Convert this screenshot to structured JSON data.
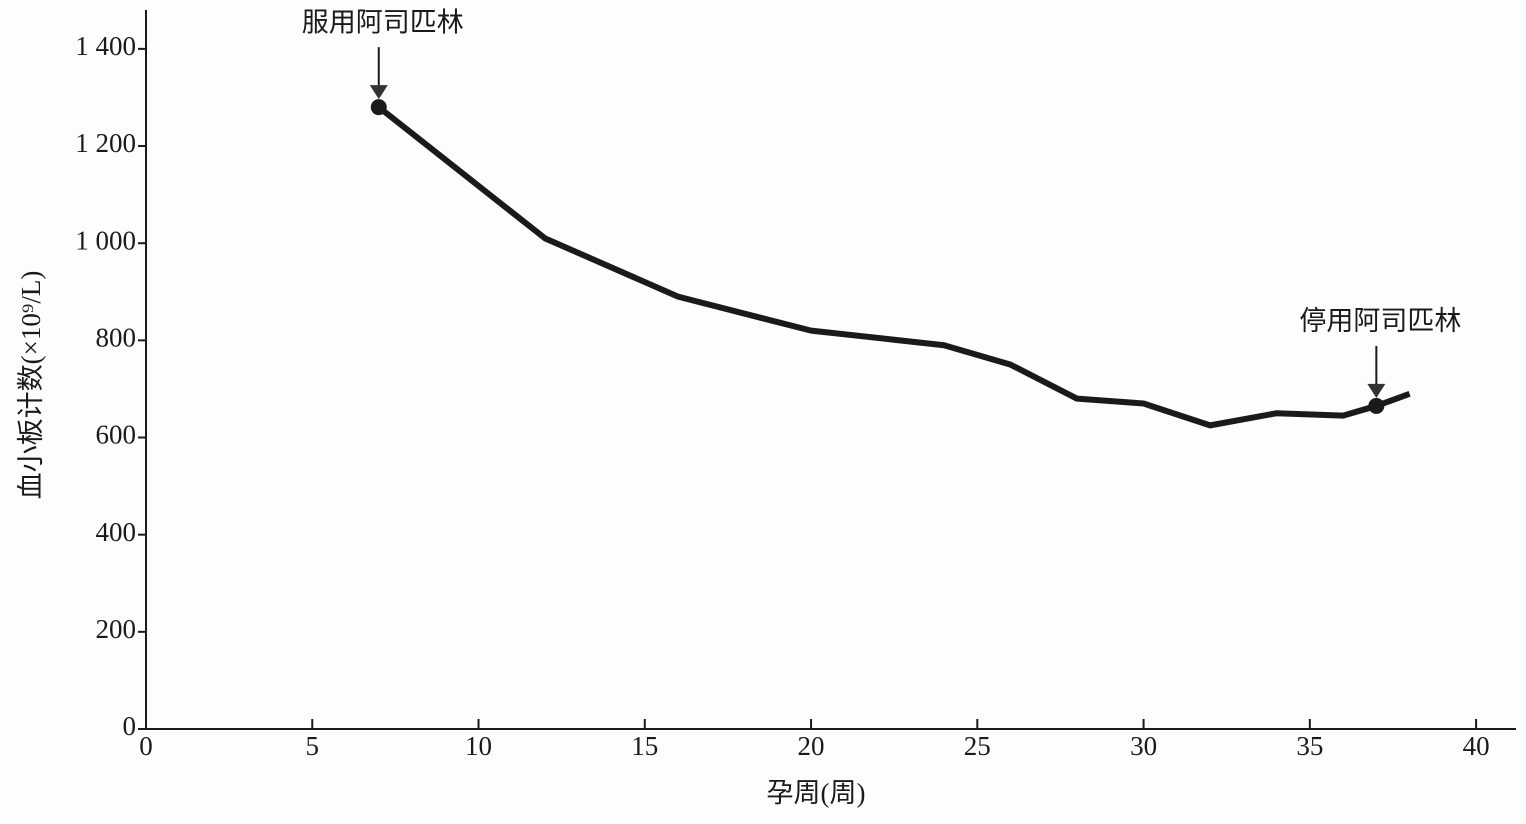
{
  "chart_data": {
    "type": "line",
    "x_label": "孕周(周)",
    "y_label": "血小板计数(×10⁹/L)",
    "x": [
      7,
      12,
      16,
      20,
      24,
      26,
      28,
      30,
      32,
      34,
      36,
      37,
      38
    ],
    "series": [
      {
        "color": "#1a1a1a",
        "values": [
          1280,
          1010,
          890,
          820,
          790,
          750,
          680,
          670,
          625,
          650,
          645,
          665,
          690
        ]
      }
    ],
    "xlim": [
      0,
      41.2
    ],
    "xticks": [
      0,
      5,
      10,
      15,
      20,
      25,
      30,
      35,
      40
    ],
    "ylim": [
      0,
      1480
    ],
    "yticks": [
      0,
      200,
      400,
      600,
      800,
      {
        "value": 1000,
        "label": "1 000"
      },
      {
        "value": 1200,
        "label": "1 200"
      },
      {
        "value": 1400,
        "label": "1 400"
      }
    ],
    "annotations": [
      {
        "text": "服用阿司匹林",
        "x": 7,
        "y": 1280
      },
      {
        "text": "停用阿司匹林",
        "x": 37,
        "y": 665
      }
    ]
  }
}
